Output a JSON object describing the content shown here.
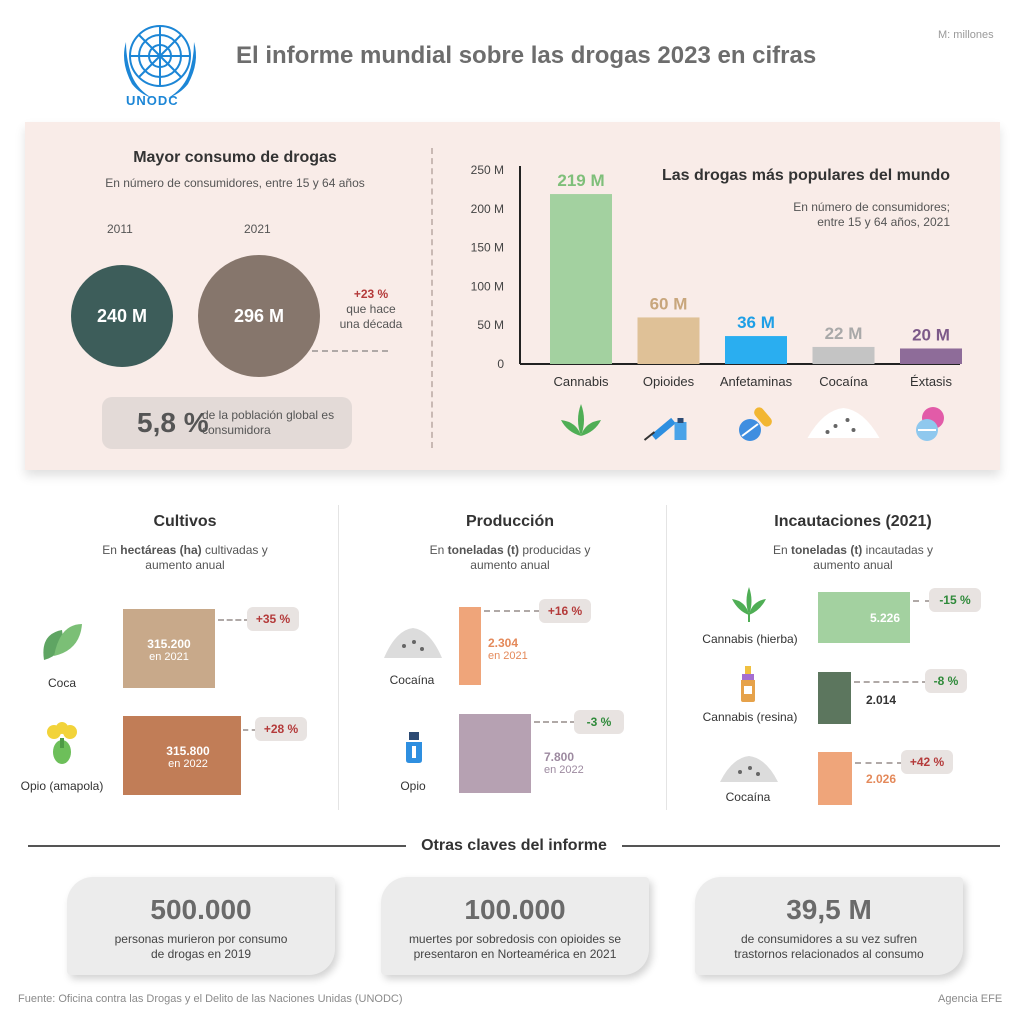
{
  "header": {
    "title": "El informe mundial sobre las drogas 2023 en cifras",
    "logo_text": "UNODC",
    "unit_note": "M: millones"
  },
  "consumo": {
    "title": "Mayor consumo de drogas",
    "subtitle": "En número de consumidores, entre 15 y 64 años",
    "year_a": "2011",
    "value_a": "240 M",
    "year_b": "2021",
    "value_b": "296 M",
    "change": "+23 %",
    "change_note": "que hace una década",
    "share": "5,8 %",
    "share_note": "de la población global es consumidora",
    "colors": {
      "a": "#3d5d5a",
      "b": "#86766c"
    }
  },
  "chart_data": {
    "type": "bar",
    "title": "Las drogas más populares del mundo",
    "subtitle": "En número de consumidores; entre 15 y 64 años, 2021",
    "categories": [
      "Cannabis",
      "Opioides",
      "Anfetaminas",
      "Cocaína",
      "Éxtasis"
    ],
    "values": [
      219,
      60,
      36,
      22,
      20
    ],
    "value_labels": [
      "219 M",
      "60 M",
      "36 M",
      "22 M",
      "20 M"
    ],
    "colors": [
      "#a3d1a0",
      "#dfc197",
      "#2aaef0",
      "#c4c4c4",
      "#8e6c99"
    ],
    "label_colors": [
      "#7fbf7a",
      "#c8a67c",
      "#1e9fe6",
      "#a9a9a9",
      "#7d5a89"
    ],
    "y_ticks": [
      "0",
      "50 M",
      "100 M",
      "150 M",
      "200 M",
      "250 M"
    ],
    "ylim": [
      0,
      250
    ],
    "grid": false,
    "icons": [
      "cannabis-leaf-icon",
      "syringe-icon",
      "pills-icon",
      "powder-icon",
      "ecstasy-pills-icon"
    ]
  },
  "cultivos": {
    "title": "Cultivos",
    "subtitle_pre": "En ",
    "subtitle_bold": "hectáreas (ha)",
    "subtitle_post": " cultivadas y aumento anual",
    "items": [
      {
        "label": "Coca",
        "value": "315.200",
        "year": "en 2021",
        "change": "+35 %",
        "color": "#c8a98a"
      },
      {
        "label": "Opio (amapola)",
        "value": "315.800",
        "year": "en 2022",
        "change": "+28 %",
        "color": "#c17d57"
      }
    ]
  },
  "produccion": {
    "title": "Producción",
    "subtitle_pre": "En ",
    "subtitle_bold": "toneladas (t)",
    "subtitle_post": " producidas y aumento anual",
    "items": [
      {
        "label": "Cocaína",
        "value": "2.304",
        "year": "en 2021",
        "change": "+16 %",
        "color": "#efa57a"
      },
      {
        "label": "Opio",
        "value": "7.800",
        "year": "en 2022",
        "change": "-3 %",
        "color": "#b6a1b2"
      }
    ]
  },
  "incautaciones": {
    "title": "Incautaciones (2021)",
    "subtitle_pre": "En ",
    "subtitle_bold": "toneladas (t)",
    "subtitle_post": " incautadas y aumento anual",
    "items": [
      {
        "label": "Cannabis (hierba)",
        "value": "5.226",
        "change": "-15 %",
        "color": "#a3d1a0"
      },
      {
        "label": "Cannabis (resina)",
        "value": "2.014",
        "change": "-8 %",
        "color": "#5c765e"
      },
      {
        "label": "Cocaína",
        "value": "2.026",
        "change": "+42 %",
        "color": "#efa57a"
      }
    ]
  },
  "otras": {
    "title": "Otras claves del informe",
    "cards": [
      {
        "number": "500.000",
        "text": "personas murieron por consumo de drogas en 2019"
      },
      {
        "number": "100.000",
        "text": "muertes por sobredosis con opioides se presentaron en Norteamérica en 2021"
      },
      {
        "number": "39,5 M",
        "text": "de consumidores a su vez sufren trastornos relacionados al consumo"
      }
    ]
  },
  "footer": {
    "source": "Fuente: Oficina contra las Drogas y el Delito de las Naciones Unidas (UNODC)",
    "agency": "Agencia EFE"
  }
}
